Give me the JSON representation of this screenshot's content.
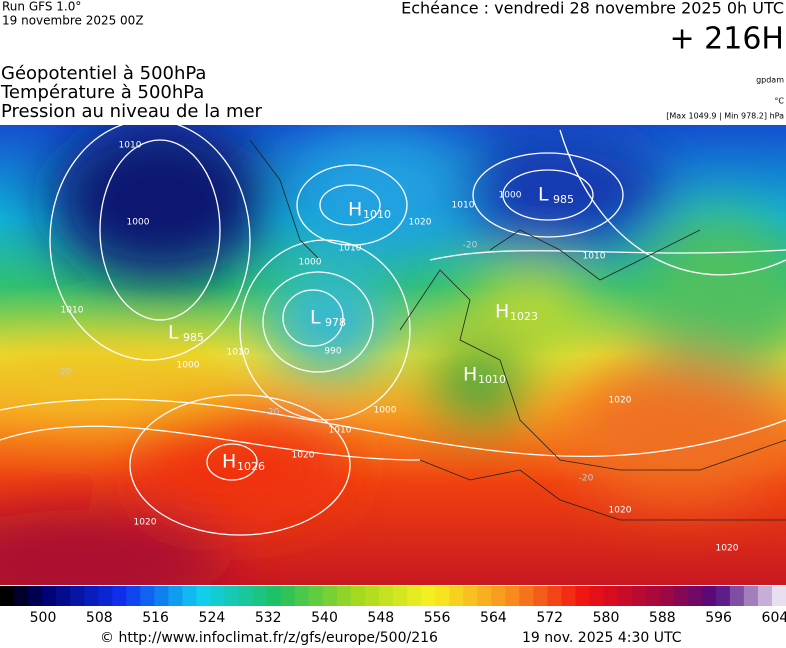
{
  "header": {
    "run": "Run GFS 1.0°",
    "date": "19 novembre 2025 00Z",
    "echeance": "Echéance : vendredi 28 novembre 2025 0h UTC",
    "lead": "+ 216H",
    "fields": [
      "Géopotentiel à 500hPa",
      "Température à 500hPa",
      "Pression au niveau de la mer"
    ],
    "units": [
      "gpdam",
      "°C",
      "[Max 1049.9 | Min 978.2] hPa"
    ]
  },
  "map": {
    "centers": [
      {
        "letter": "L",
        "value": "985"
      },
      {
        "letter": "H",
        "value": "1010"
      },
      {
        "letter": "L",
        "value": "978"
      },
      {
        "letter": "L",
        "value": "985"
      },
      {
        "letter": "H",
        "value": "1010"
      },
      {
        "letter": "H",
        "value": "1026"
      },
      {
        "letter": "H",
        "value": "1023"
      }
    ],
    "isobar_labels": [
      "1010",
      "1000",
      "1010",
      "1000",
      "1010",
      "990",
      "1000",
      "1010",
      "1020",
      "1000",
      "1010",
      "1020",
      "1020",
      "1010",
      "1000",
      "1010",
      "1020",
      "1020",
      "1020"
    ],
    "temperature_labels": [
      "-20",
      "-20",
      "-20",
      "-20"
    ]
  },
  "colorbar": {
    "labels": [
      "500",
      "508",
      "516",
      "524",
      "532",
      "540",
      "548",
      "556",
      "564",
      "572",
      "580",
      "588",
      "596",
      "604"
    ]
  },
  "footer": {
    "url": "© http://www.infoclimat.fr/z/gfs/europe/500/216",
    "timestamp": "19 nov. 2025  4:30 UTC"
  }
}
